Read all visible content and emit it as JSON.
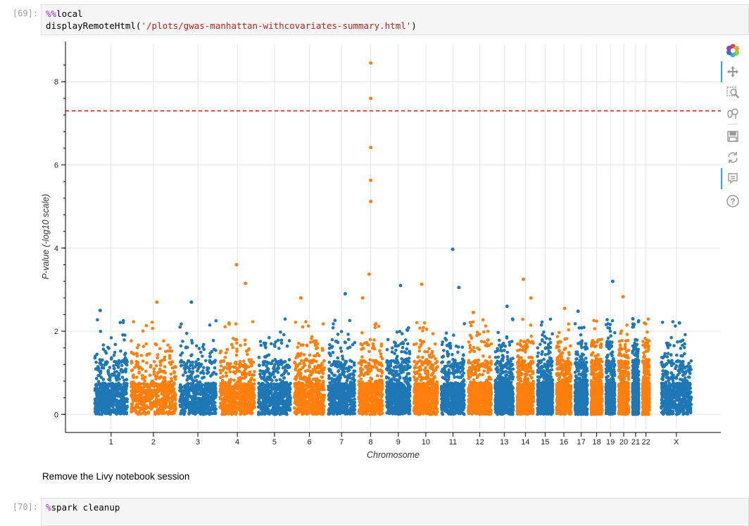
{
  "cells": [
    {
      "prompt": "[69]:",
      "magic": "%%",
      "magic_word": "local",
      "line2_prefix": "displayRemoteHtml(",
      "line2_string": "'/plots/gwas-manhattan-withcovariates-summary.html'",
      "line2_suffix": ")"
    },
    {
      "prompt": "[70]:",
      "magic": "%",
      "magic_word": "spark cleanup"
    }
  ],
  "markdown": {
    "text": "Remove the Livy notebook session"
  },
  "toolbar": {
    "icons": [
      "bokeh-logo-icon",
      "pan-icon",
      "box-zoom-icon",
      "wheel-zoom-icon",
      "save-icon",
      "reset-icon",
      "hover-icon",
      "help-icon"
    ]
  },
  "chart_data": {
    "type": "scatter",
    "title": "",
    "xlabel": "Chromosome",
    "ylabel": "P-value (-log10 scale)",
    "ylim": [
      -0.35,
      8.9
    ],
    "yticks": [
      0,
      2,
      4,
      6,
      8
    ],
    "grid": true,
    "legend": "none",
    "colors": {
      "odd": "#1f77b4",
      "even": "#ff7f0e",
      "threshold": "#ff0000"
    },
    "threshold": {
      "value": 7.3,
      "style": "dashed"
    },
    "chromosomes": [
      {
        "label": "1",
        "start": 0.0,
        "end": 1.12
      },
      {
        "label": "2",
        "start": 1.12,
        "end": 2.62
      },
      {
        "label": "3",
        "start": 2.62,
        "end": 3.87
      },
      {
        "label": "4",
        "start": 3.87,
        "end": 5.06
      },
      {
        "label": "5",
        "start": 5.06,
        "end": 6.17
      },
      {
        "label": "6",
        "start": 6.17,
        "end": 7.22
      },
      {
        "label": "7",
        "start": 7.22,
        "end": 8.16
      },
      {
        "label": "8",
        "start": 8.16,
        "end": 9.02
      },
      {
        "label": "9",
        "start": 9.02,
        "end": 9.87
      },
      {
        "label": "10",
        "start": 9.87,
        "end": 10.72
      },
      {
        "label": "11",
        "start": 10.72,
        "end": 11.55
      },
      {
        "label": "12",
        "start": 11.55,
        "end": 12.38
      },
      {
        "label": "13",
        "start": 12.38,
        "end": 13.06
      },
      {
        "label": "14",
        "start": 13.06,
        "end": 13.69
      },
      {
        "label": "15",
        "start": 13.69,
        "end": 14.28
      },
      {
        "label": "16",
        "start": 14.28,
        "end": 14.85
      },
      {
        "label": "17",
        "start": 14.85,
        "end": 15.35
      },
      {
        "label": "18",
        "start": 15.35,
        "end": 15.81
      },
      {
        "label": "19",
        "start": 15.81,
        "end": 16.2
      },
      {
        "label": "20",
        "start": 16.2,
        "end": 16.63
      },
      {
        "label": "21",
        "start": 16.63,
        "end": 16.94
      },
      {
        "label": "22",
        "start": 16.94,
        "end": 17.27
      },
      {
        "label": "X",
        "start": 17.52,
        "end": 18.57
      }
    ],
    "points_per_chromosome_approx": 600,
    "notable_points": [
      {
        "chrom": "1",
        "y": 2.5
      },
      {
        "chrom": "2",
        "y": 2.7
      },
      {
        "chrom": "3",
        "y": 2.7
      },
      {
        "chrom": "4",
        "y": 3.15
      },
      {
        "chrom": "4",
        "y": 3.6
      },
      {
        "chrom": "6",
        "y": 2.8
      },
      {
        "chrom": "7",
        "y": 2.9
      },
      {
        "chrom": "8",
        "y": 8.45
      },
      {
        "chrom": "8",
        "y": 7.6
      },
      {
        "chrom": "8",
        "y": 6.42
      },
      {
        "chrom": "8",
        "y": 5.63
      },
      {
        "chrom": "8",
        "y": 5.12
      },
      {
        "chrom": "8",
        "y": 3.37
      },
      {
        "chrom": "8",
        "y": 2.8
      },
      {
        "chrom": "9",
        "y": 3.1
      },
      {
        "chrom": "10",
        "y": 3.13
      },
      {
        "chrom": "11",
        "y": 3.05
      },
      {
        "chrom": "11",
        "y": 3.97
      },
      {
        "chrom": "12",
        "y": 2.45
      },
      {
        "chrom": "13",
        "y": 2.6
      },
      {
        "chrom": "14",
        "y": 3.25
      },
      {
        "chrom": "14",
        "y": 2.8
      },
      {
        "chrom": "16",
        "y": 2.55
      },
      {
        "chrom": "17",
        "y": 2.48
      },
      {
        "chrom": "19",
        "y": 3.2
      },
      {
        "chrom": "20",
        "y": 2.83
      },
      {
        "chrom": "21",
        "y": 2.3
      },
      {
        "chrom": "X",
        "y": 2.2
      }
    ]
  }
}
